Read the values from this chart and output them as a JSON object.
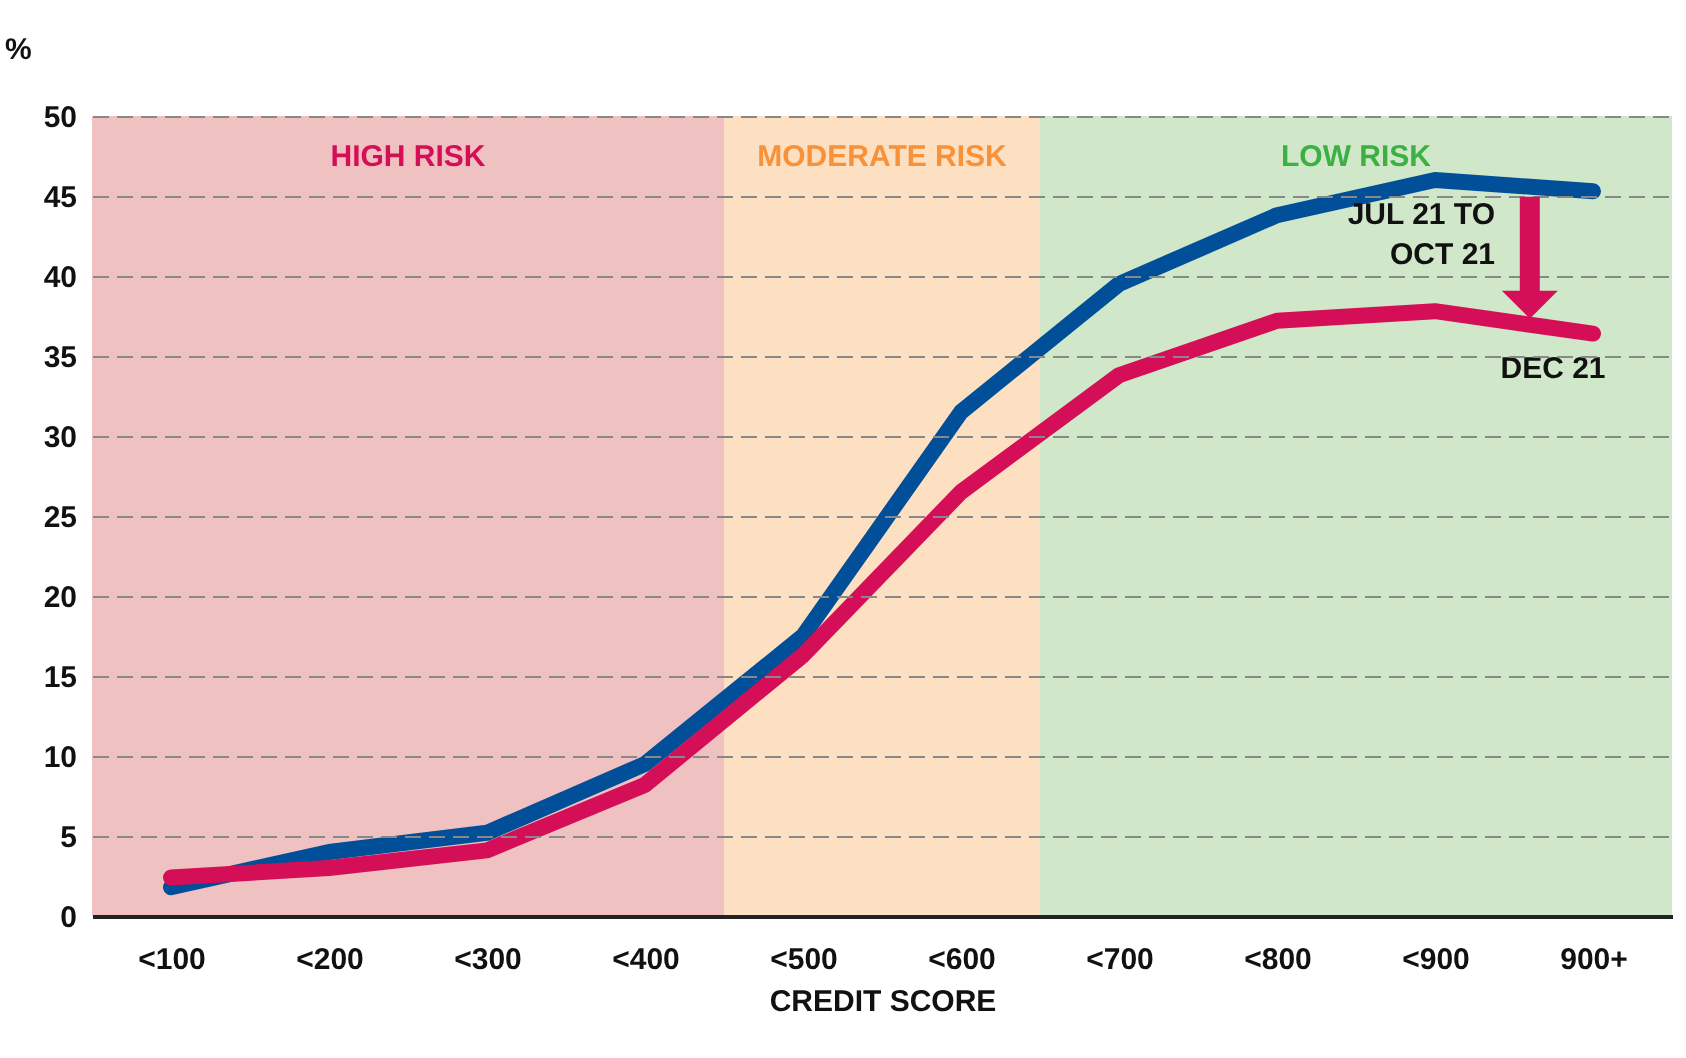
{
  "chart_data": {
    "type": "line",
    "xlabel": "CREDIT SCORE",
    "ylabel": "%",
    "categories": [
      "<100",
      "<200",
      "<300",
      "<400",
      "<500",
      "<600",
      "<700",
      "<800",
      "<900",
      "900+"
    ],
    "series": [
      {
        "name": "JUL 21 TO OCT 21",
        "color": "#004f98",
        "values": [
          1.8,
          4.0,
          5.2,
          9.5,
          17.5,
          31.5,
          39.5,
          43.8,
          46.0,
          45.3
        ]
      },
      {
        "name": "DEC 21",
        "color": "#d40f57",
        "values": [
          2.4,
          3.0,
          4.1,
          8.2,
          16.3,
          26.5,
          33.8,
          37.2,
          37.8,
          36.4
        ]
      }
    ],
    "bands": [
      {
        "axis": "x",
        "from": "<100",
        "to": "<400",
        "label": "HIGH RISK",
        "color": "#f0c1c1"
      },
      {
        "axis": "x",
        "from": "<500",
        "to": "<600",
        "label": "MODERATE RISK",
        "color": "#fde0c2"
      },
      {
        "axis": "x",
        "from": "<700",
        "to": "900+",
        "label": "LOW RISK",
        "color": "#d0e8c9"
      }
    ],
    "ylim": [
      0,
      50
    ],
    "yticks": [
      0,
      5,
      10,
      15,
      20,
      25,
      30,
      35,
      40,
      45,
      50
    ],
    "grid": "y"
  }
}
